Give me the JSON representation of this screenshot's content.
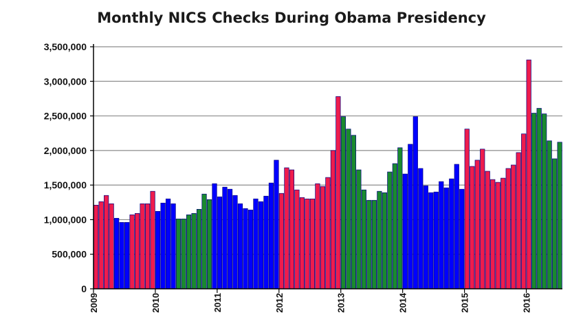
{
  "chart_data": {
    "type": "bar",
    "title": "Monthly NICS Checks During Obama Presidency",
    "xlabel": "",
    "ylabel": "",
    "ylim": [
      0,
      3500000
    ],
    "yticks": [
      0,
      500000,
      1000000,
      1500000,
      2000000,
      2500000,
      3000000,
      3500000
    ],
    "ytick_labels": [
      "0",
      "500,000",
      "1,000,000",
      "1,500,000",
      "2,000,000",
      "2,500,000",
      "3,000,000",
      "3,500,000"
    ],
    "year_labels": [
      "2009",
      "2010",
      "2011",
      "2012",
      "2013",
      "2014",
      "2015",
      "2016"
    ],
    "start": "2009-01",
    "grid": true,
    "colors": {
      "red": "#ee1c4d",
      "blue": "#0000ff",
      "green": "#1a8a2e",
      "outline": "#000080",
      "gridline": "#8c8c8c",
      "axis": "#000000"
    },
    "values": [
      1210000,
      1260000,
      1350000,
      1230000,
      1020000,
      960000,
      960000,
      1070000,
      1090000,
      1230000,
      1230000,
      1410000,
      1120000,
      1240000,
      1300000,
      1230000,
      1010000,
      1010000,
      1070000,
      1090000,
      1150000,
      1370000,
      1290000,
      1520000,
      1330000,
      1470000,
      1440000,
      1350000,
      1230000,
      1160000,
      1140000,
      1300000,
      1260000,
      1340000,
      1530000,
      1860000,
      1380000,
      1750000,
      1720000,
      1430000,
      1320000,
      1300000,
      1300000,
      1520000,
      1480000,
      1610000,
      2000000,
      2780000,
      2490000,
      2310000,
      2220000,
      1720000,
      1430000,
      1280000,
      1280000,
      1410000,
      1390000,
      1690000,
      1810000,
      2040000,
      1660000,
      2090000,
      2490000,
      1740000,
      1490000,
      1390000,
      1400000,
      1550000,
      1460000,
      1590000,
      1800000,
      1440000,
      2310000,
      1770000,
      1860000,
      2020000,
      1700000,
      1580000,
      1540000,
      1600000,
      1740000,
      1790000,
      1970000,
      2240000,
      3310000,
      2540000,
      2610000,
      2530000,
      2140000,
      1880000,
      2120000
    ],
    "bar_color_pattern": [
      "red",
      "red",
      "red",
      "red",
      "blue",
      "blue",
      "blue",
      "red",
      "red",
      "red",
      "red",
      "red",
      "blue",
      "blue",
      "blue",
      "blue",
      "green",
      "green",
      "green",
      "green",
      "green",
      "green",
      "green",
      "blue",
      "blue",
      "blue",
      "blue",
      "blue",
      "blue",
      "blue",
      "blue",
      "blue",
      "blue",
      "blue",
      "blue",
      "blue",
      "red",
      "red",
      "red",
      "red",
      "red",
      "red",
      "red",
      "red",
      "red",
      "red",
      "red",
      "red",
      "green",
      "green",
      "green",
      "green",
      "green",
      "green",
      "green",
      "green",
      "green",
      "green",
      "green",
      "green",
      "blue",
      "blue",
      "blue",
      "blue",
      "blue",
      "blue",
      "blue",
      "blue",
      "blue",
      "blue",
      "blue",
      "blue",
      "red",
      "red",
      "red",
      "red",
      "red",
      "red",
      "red",
      "red",
      "red",
      "red",
      "red",
      "red",
      "red",
      "green",
      "green",
      "green",
      "green",
      "green",
      "green"
    ]
  }
}
